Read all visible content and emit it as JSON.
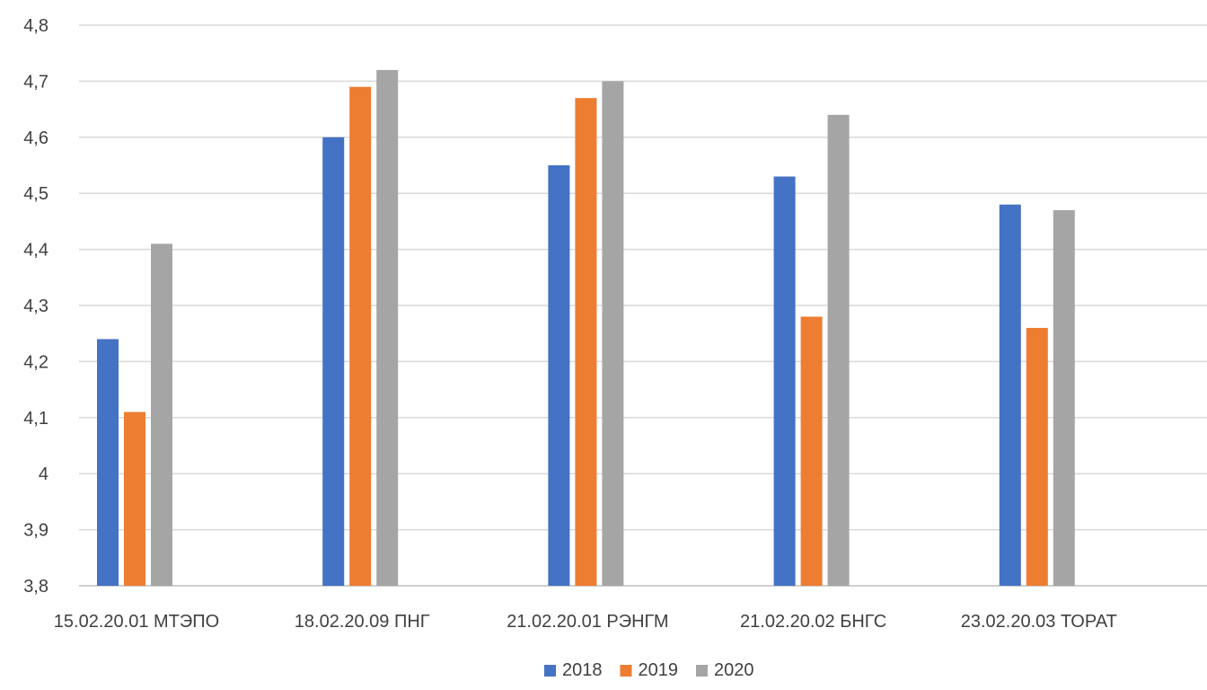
{
  "chart_data": {
    "type": "bar",
    "categories": [
      "15.02.20.01 МТЭПО",
      "18.02.20.09 ПНГ",
      "21.02.20.01 РЭНГМ",
      "21.02.20.02 БНГС",
      "23.02.20.03  ТОРАТ"
    ],
    "series": [
      {
        "name": "2018",
        "color": "#4472c4",
        "values": [
          4.24,
          4.6,
          4.55,
          4.53,
          4.48
        ]
      },
      {
        "name": "2019",
        "color": "#ed7d31",
        "values": [
          4.11,
          4.69,
          4.67,
          4.28,
          4.26
        ]
      },
      {
        "name": "2020",
        "color": "#a5a5a5",
        "values": [
          4.41,
          4.72,
          4.7,
          4.64,
          4.47
        ]
      }
    ],
    "ylim": [
      3.8,
      4.8
    ],
    "yticks": [
      "3,8",
      "3,9",
      "4",
      "4,1",
      "4,2",
      "4,3",
      "4,4",
      "4,5",
      "4,6",
      "4,7",
      "4,8"
    ],
    "ytick_values": [
      3.8,
      3.9,
      4.0,
      4.1,
      4.2,
      4.3,
      4.4,
      4.5,
      4.6,
      4.7,
      4.8
    ],
    "grid": true,
    "legend_position": "bottom"
  }
}
